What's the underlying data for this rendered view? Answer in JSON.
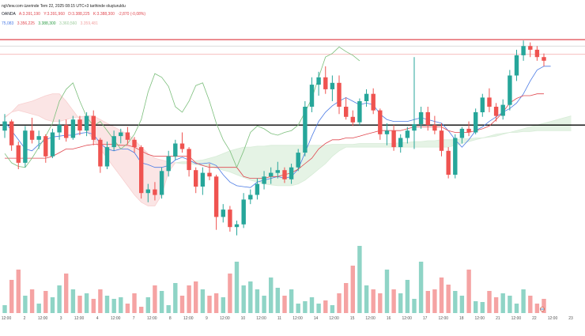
{
  "header": {
    "title_line": "ngView.com üzerinde Tem 22, 2025 08:15 UTC+3 tarihinde oluşturuldu",
    "symbol": "OANDA",
    "ohlc": [
      "A:3.391,190",
      "Y:3.391,960",
      "D:3.388,225",
      "K:3.388,300",
      "-2,870 (-0,08%)"
    ],
    "indicators": [
      {
        "text": "75,083",
        "color": "#4b7be5"
      },
      {
        "text": "3.356,225",
        "color": "#e0474f"
      },
      {
        "text": "3.388,300",
        "color": "#2e9e46"
      },
      {
        "text": "3.360,560",
        "color": "#9ccc9c"
      },
      {
        "text": "3.359,481",
        "color": "#f2a4a4"
      }
    ]
  },
  "chart_data": {
    "type": "candlestick",
    "price_range": [
      3224,
      3446
    ],
    "x_labels": [
      "12:00",
      "2",
      "12:00",
      "3",
      "12:00",
      "4",
      "12:00",
      "7",
      "12:00",
      "8",
      "12:00",
      "9",
      "12:00",
      "10",
      "12:00",
      "11",
      "12:00",
      "14",
      "12:00",
      "15",
      "12:00",
      "16",
      "12:00",
      "17",
      "12:00",
      "18",
      "12:00",
      "21",
      "12:00",
      "22",
      "12:00",
      "23"
    ],
    "horizontal_levels": [
      {
        "price": 3439,
        "color": "#e0474f",
        "width": 1.2
      },
      {
        "price": 3432,
        "color": "#cfcfcf",
        "width": 0.8
      },
      {
        "price": 3423,
        "color": "#f4a6a6",
        "width": 0.8
      },
      {
        "price": 3346,
        "color": "#000000",
        "width": 1.4
      }
    ],
    "candles": [
      [
        3340,
        3358,
        3332,
        3350
      ],
      [
        3350,
        3352,
        3318,
        3324
      ],
      [
        3324,
        3328,
        3298,
        3305
      ],
      [
        3305,
        3345,
        3300,
        3340
      ],
      [
        3340,
        3354,
        3326,
        3330
      ],
      [
        3330,
        3340,
        3320,
        3334
      ],
      [
        3334,
        3336,
        3305,
        3312
      ],
      [
        3312,
        3342,
        3310,
        3338
      ],
      [
        3338,
        3352,
        3330,
        3346
      ],
      [
        3346,
        3352,
        3328,
        3332
      ],
      [
        3332,
        3356,
        3330,
        3352
      ],
      [
        3352,
        3356,
        3335,
        3340
      ],
      [
        3340,
        3360,
        3334,
        3356
      ],
      [
        3356,
        3362,
        3324,
        3330
      ],
      [
        3330,
        3332,
        3294,
        3301
      ],
      [
        3301,
        3328,
        3298,
        3322
      ],
      [
        3322,
        3340,
        3318,
        3334
      ],
      [
        3334,
        3342,
        3326,
        3338
      ],
      [
        3338,
        3344,
        3325,
        3330
      ],
      [
        3330,
        3333,
        3316,
        3322
      ],
      [
        3322,
        3324,
        3266,
        3272
      ],
      [
        3272,
        3282,
        3262,
        3276
      ],
      [
        3276,
        3284,
        3264,
        3270
      ],
      [
        3270,
        3300,
        3266,
        3296
      ],
      [
        3296,
        3318,
        3290,
        3312
      ],
      [
        3312,
        3330,
        3308,
        3326
      ],
      [
        3326,
        3338,
        3316,
        3320
      ],
      [
        3320,
        3322,
        3290,
        3297
      ],
      [
        3297,
        3300,
        3272,
        3279
      ],
      [
        3279,
        3300,
        3270,
        3294
      ],
      [
        3294,
        3304,
        3286,
        3290
      ],
      [
        3290,
        3292,
        3232,
        3246
      ],
      [
        3246,
        3260,
        3240,
        3254
      ],
      [
        3254,
        3258,
        3230,
        3235
      ],
      [
        3235,
        3242,
        3226,
        3238
      ],
      [
        3238,
        3272,
        3234,
        3265
      ],
      [
        3265,
        3276,
        3260,
        3270
      ],
      [
        3270,
        3288,
        3265,
        3282
      ],
      [
        3282,
        3296,
        3276,
        3290
      ],
      [
        3290,
        3300,
        3282,
        3294
      ],
      [
        3294,
        3306,
        3288,
        3297
      ],
      [
        3297,
        3300,
        3283,
        3287
      ],
      [
        3287,
        3304,
        3282,
        3300
      ],
      [
        3300,
        3320,
        3296,
        3316
      ],
      [
        3316,
        3372,
        3312,
        3366
      ],
      [
        3366,
        3398,
        3360,
        3390
      ],
      [
        3390,
        3404,
        3378,
        3398
      ],
      [
        3398,
        3410,
        3380,
        3385
      ],
      [
        3385,
        3400,
        3372,
        3392
      ],
      [
        3392,
        3400,
        3358,
        3366
      ],
      [
        3366,
        3376,
        3352,
        3355
      ],
      [
        3355,
        3362,
        3345,
        3349
      ],
      [
        3349,
        3375,
        3346,
        3372
      ],
      [
        3372,
        3385,
        3366,
        3380
      ],
      [
        3380,
        3386,
        3358,
        3362
      ],
      [
        3362,
        3364,
        3330,
        3336
      ],
      [
        3336,
        3348,
        3324,
        3340
      ],
      [
        3340,
        3346,
        3318,
        3322
      ],
      [
        3322,
        3336,
        3316,
        3332
      ],
      [
        3332,
        3344,
        3326,
        3340
      ],
      [
        3340,
        3420,
        3320,
        3347
      ],
      [
        3347,
        3366,
        3342,
        3360
      ],
      [
        3360,
        3366,
        3340,
        3346
      ],
      [
        3346,
        3356,
        3336,
        3340
      ],
      [
        3340,
        3348,
        3312,
        3318
      ],
      [
        3318,
        3322,
        3288,
        3292
      ],
      [
        3292,
        3336,
        3288,
        3332
      ],
      [
        3332,
        3344,
        3326,
        3342
      ],
      [
        3342,
        3350,
        3334,
        3338
      ],
      [
        3338,
        3364,
        3336,
        3360
      ],
      [
        3360,
        3380,
        3355,
        3376
      ],
      [
        3376,
        3386,
        3360,
        3366
      ],
      [
        3366,
        3370,
        3350,
        3356
      ],
      [
        3356,
        3374,
        3352,
        3368
      ],
      [
        3368,
        3406,
        3362,
        3400
      ],
      [
        3400,
        3428,
        3394,
        3422
      ],
      [
        3422,
        3438,
        3416,
        3432
      ],
      [
        3432,
        3436,
        3420,
        3428
      ],
      [
        3428,
        3432,
        3416,
        3420
      ],
      [
        3420,
        3424,
        3410,
        3416
      ]
    ],
    "lines": [
      {
        "name": "tenkan",
        "color": "#4b7be5",
        "start": 0,
        "values": [
          3350,
          3340,
          3330,
          3320,
          3318,
          3325,
          3330,
          3333,
          3334,
          3335,
          3335,
          3337,
          3338,
          3336,
          3326,
          3320,
          3318,
          3320,
          3320,
          3316,
          3305,
          3303,
          3300,
          3300,
          3302,
          3308,
          3311,
          3308,
          3304,
          3304,
          3305,
          3302,
          3292,
          3284,
          3280,
          3279,
          3278,
          3284,
          3286,
          3288,
          3290,
          3288,
          3290,
          3298,
          3316,
          3334,
          3350,
          3360,
          3367,
          3372,
          3376,
          3372,
          3368,
          3370,
          3368,
          3358,
          3352,
          3350,
          3350,
          3350,
          3352,
          3354,
          3352,
          3350,
          3348,
          3340,
          3330,
          3322,
          3330,
          3340,
          3344,
          3350,
          3355,
          3360,
          3364,
          3370,
          3380,
          3394,
          3406,
          3410,
          3410
        ]
      },
      {
        "name": "kijun",
        "color": "#e0474f",
        "start": 0,
        "values": [
          3310,
          3310,
          3310,
          3310,
          3310,
          3310,
          3310,
          3312,
          3316,
          3320,
          3320,
          3322,
          3324,
          3325,
          3325,
          3325,
          3325,
          3324,
          3324,
          3322,
          3318,
          3314,
          3312,
          3312,
          3312,
          3312,
          3312,
          3312,
          3305,
          3302,
          3300,
          3300,
          3300,
          3300,
          3300,
          3290,
          3288,
          3288,
          3288,
          3290,
          3290,
          3292,
          3294,
          3298,
          3304,
          3310,
          3320,
          3326,
          3330,
          3330,
          3332,
          3332,
          3334,
          3336,
          3338,
          3340,
          3340,
          3340,
          3340,
          3342,
          3344,
          3344,
          3344,
          3344,
          3344,
          3340,
          3338,
          3338,
          3338,
          3340,
          3342,
          3345,
          3352,
          3360,
          3370,
          3375,
          3378,
          3378,
          3380,
          3380
        ]
      },
      {
        "name": "chikou",
        "color": "#7cbf7c",
        "start": 0,
        "values": [
          3315,
          3305,
          3301,
          3300,
          3310,
          3322,
          3334,
          3348,
          3372,
          3385,
          3392,
          3372,
          3355,
          3345,
          3350,
          3340,
          3330,
          3320,
          3326,
          3336,
          3352,
          3382,
          3402,
          3398,
          3388,
          3366,
          3360,
          3372,
          3389,
          3392,
          3372,
          3348,
          3330,
          3318,
          3300,
          3318,
          3338,
          3345,
          3342,
          3337,
          3335,
          3338,
          3340,
          3346,
          3360,
          3375,
          3398,
          3420,
          3424,
          3431,
          3426,
          3422,
          3416
        ]
      }
    ],
    "cloud": [
      {
        "color": "#f8d0d0",
        "opacity": 0.55,
        "start": 0,
        "a": [
          3355,
          3360,
          3362,
          3360,
          3358,
          3356,
          3352,
          3350,
          3350,
          3352,
          3354,
          3355,
          3356,
          3356,
          3352,
          3348,
          3344,
          3340,
          3336,
          3330,
          3322,
          3315,
          3310,
          3308,
          3306,
          3305
        ],
        "b": [
          3354,
          3360,
          3368,
          3370,
          3372,
          3375,
          3378,
          3380,
          3380,
          3372,
          3362,
          3352,
          3340,
          3330,
          3320,
          3310,
          3300,
          3290,
          3280,
          3270,
          3262,
          3258,
          3258,
          3270,
          3295,
          3305
        ]
      },
      {
        "color": "#d7ecd7",
        "opacity": 0.65,
        "start": 25,
        "a": [
          3305,
          3306,
          3306,
          3307,
          3308,
          3310,
          3312,
          3315,
          3318,
          3320,
          3322,
          3322,
          3323,
          3323,
          3324,
          3324,
          3324,
          3324,
          3324,
          3324,
          3324,
          3324,
          3324,
          3325,
          3325,
          3325,
          3325,
          3326,
          3326,
          3326,
          3326,
          3326,
          3326,
          3327,
          3327,
          3328,
          3328,
          3329,
          3329,
          3330,
          3330,
          3330,
          3331,
          3331,
          3332,
          3332,
          3333,
          3334,
          3336,
          3338,
          3340,
          3342,
          3344,
          3346,
          3348,
          3350,
          3352,
          3354,
          3356
        ],
        "b": [
          3305,
          3304,
          3304,
          3303,
          3302,
          3301,
          3299,
          3297,
          3295,
          3292,
          3289,
          3286,
          3284,
          3282,
          3281,
          3280,
          3280,
          3280,
          3282,
          3286,
          3292,
          3298,
          3304,
          3312,
          3318,
          3322,
          3322,
          3322,
          3322,
          3322,
          3322,
          3322,
          3322,
          3322,
          3322,
          3322,
          3322,
          3322,
          3322,
          3322,
          3322,
          3324,
          3326,
          3328,
          3330,
          3332,
          3334,
          3336,
          3337,
          3338,
          3338,
          3339,
          3339,
          3340,
          3340,
          3340,
          3340,
          3340,
          3340
        ]
      }
    ],
    "volume": {
      "max": 1.0,
      "values": [
        0.1,
        0.42,
        0.55,
        0.22,
        0.3,
        0.12,
        0.28,
        0.2,
        0.35,
        0.5,
        0.3,
        0.22,
        0.25,
        0.18,
        0.3,
        0.22,
        0.18,
        0.2,
        0.12,
        0.25,
        0.08,
        0.2,
        0.35,
        0.28,
        0.1,
        0.38,
        0.22,
        0.35,
        0.4,
        0.3,
        0.22,
        0.25,
        0.2,
        0.5,
        0.65,
        0.35,
        0.4,
        0.3,
        0.22,
        0.45,
        0.32,
        0.22,
        0.3,
        0.12,
        0.15,
        0.2,
        0.12,
        0.16,
        0.1,
        0.25,
        0.38,
        0.6,
        0.85,
        0.35,
        0.3,
        0.25,
        0.55,
        0.3,
        0.25,
        0.42,
        0.18,
        0.65,
        0.28,
        0.3,
        0.45,
        0.36,
        0.28,
        0.22,
        0.55,
        0.15,
        0.14,
        0.28,
        0.2,
        0.25,
        0.22,
        0.12,
        0.3,
        0.22,
        0.12,
        0.18,
        0.12
      ],
      "bullish_color": "#8fd4c6",
      "bearish_color": "#f5a3a3"
    },
    "bullish_color": "#26a69a",
    "bearish_color": "#ef5350"
  }
}
